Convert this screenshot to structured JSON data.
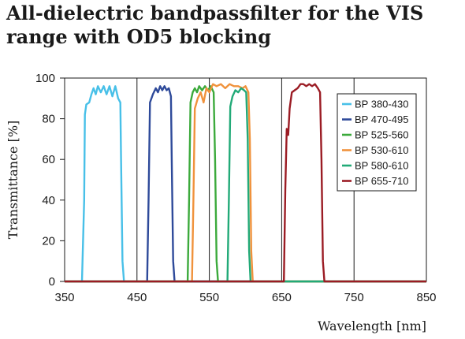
{
  "chart_data": {
    "type": "line",
    "title": "All-dielectric bandpassfilter for the VIS range with OD5 blocking",
    "xlabel": "Wavelength [nm]",
    "ylabel": "Transmittance [%]",
    "xlim": [
      350,
      850
    ],
    "ylim": [
      0,
      100
    ],
    "x_ticks": [
      "350",
      "450",
      "550",
      "650",
      "750",
      "850"
    ],
    "y_ticks": [
      "0",
      "20",
      "40",
      "60",
      "80",
      "100"
    ],
    "grid": "vertical",
    "legend_position": "right",
    "series": [
      {
        "name": "BP 380-430",
        "color": "#48c0e8",
        "points": [
          [
            350,
            0
          ],
          [
            374,
            0
          ],
          [
            377,
            40
          ],
          [
            378,
            82
          ],
          [
            380,
            87
          ],
          [
            384,
            88
          ],
          [
            387,
            92
          ],
          [
            390,
            95
          ],
          [
            393,
            92
          ],
          [
            396,
            96
          ],
          [
            400,
            93
          ],
          [
            404,
            96
          ],
          [
            408,
            92
          ],
          [
            412,
            96
          ],
          [
            416,
            91
          ],
          [
            420,
            96
          ],
          [
            424,
            90
          ],
          [
            427,
            88
          ],
          [
            428,
            60
          ],
          [
            430,
            10
          ],
          [
            432,
            0
          ],
          [
            850,
            0
          ]
        ]
      },
      {
        "name": "BP 470-495",
        "color": "#2e4a9a",
        "points": [
          [
            350,
            0
          ],
          [
            464,
            0
          ],
          [
            466,
            40
          ],
          [
            468,
            88
          ],
          [
            472,
            92
          ],
          [
            476,
            95
          ],
          [
            479,
            93
          ],
          [
            482,
            96
          ],
          [
            485,
            94
          ],
          [
            488,
            96
          ],
          [
            491,
            94
          ],
          [
            494,
            95
          ],
          [
            497,
            91
          ],
          [
            498,
            60
          ],
          [
            500,
            10
          ],
          [
            502,
            0
          ],
          [
            850,
            0
          ]
        ]
      },
      {
        "name": "BP 525-560",
        "color": "#3caa3c",
        "points": [
          [
            350,
            0
          ],
          [
            520,
            0
          ],
          [
            522,
            40
          ],
          [
            524,
            88
          ],
          [
            527,
            93
          ],
          [
            530,
            95
          ],
          [
            533,
            93
          ],
          [
            536,
            96
          ],
          [
            540,
            94
          ],
          [
            544,
            96
          ],
          [
            548,
            94
          ],
          [
            552,
            96
          ],
          [
            556,
            93
          ],
          [
            558,
            60
          ],
          [
            560,
            10
          ],
          [
            562,
            0
          ],
          [
            850,
            0
          ]
        ]
      },
      {
        "name": "BP 530-610",
        "color": "#f0923c",
        "points": [
          [
            350,
            0
          ],
          [
            526,
            0
          ],
          [
            528,
            40
          ],
          [
            530,
            85
          ],
          [
            534,
            90
          ],
          [
            538,
            93
          ],
          [
            542,
            88
          ],
          [
            546,
            95
          ],
          [
            550,
            93
          ],
          [
            555,
            97
          ],
          [
            560,
            96
          ],
          [
            566,
            97
          ],
          [
            572,
            95
          ],
          [
            578,
            97
          ],
          [
            584,
            96
          ],
          [
            590,
            96
          ],
          [
            596,
            95
          ],
          [
            600,
            96
          ],
          [
            604,
            93
          ],
          [
            606,
            70
          ],
          [
            608,
            15
          ],
          [
            610,
            0
          ],
          [
            850,
            0
          ]
        ]
      },
      {
        "name": "BP 580-610",
        "color": "#22aa78",
        "points": [
          [
            350,
            0
          ],
          [
            575,
            0
          ],
          [
            577,
            40
          ],
          [
            579,
            86
          ],
          [
            582,
            91
          ],
          [
            586,
            94
          ],
          [
            590,
            93
          ],
          [
            594,
            95
          ],
          [
            598,
            94
          ],
          [
            601,
            93
          ],
          [
            603,
            70
          ],
          [
            605,
            15
          ],
          [
            607,
            0
          ],
          [
            850,
            0
          ]
        ]
      },
      {
        "name": "BP 655-710",
        "color": "#9b1c24",
        "points": [
          [
            350,
            0
          ],
          [
            653,
            0
          ],
          [
            655,
            45
          ],
          [
            657,
            75
          ],
          [
            659,
            72
          ],
          [
            661,
            85
          ],
          [
            664,
            93
          ],
          [
            668,
            94
          ],
          [
            672,
            95
          ],
          [
            676,
            97
          ],
          [
            680,
            97
          ],
          [
            684,
            96
          ],
          [
            688,
            97
          ],
          [
            692,
            96
          ],
          [
            696,
            97
          ],
          [
            700,
            95
          ],
          [
            703,
            93
          ],
          [
            705,
            60
          ],
          [
            707,
            10
          ],
          [
            709,
            0
          ],
          [
            850,
            0
          ]
        ]
      }
    ]
  }
}
